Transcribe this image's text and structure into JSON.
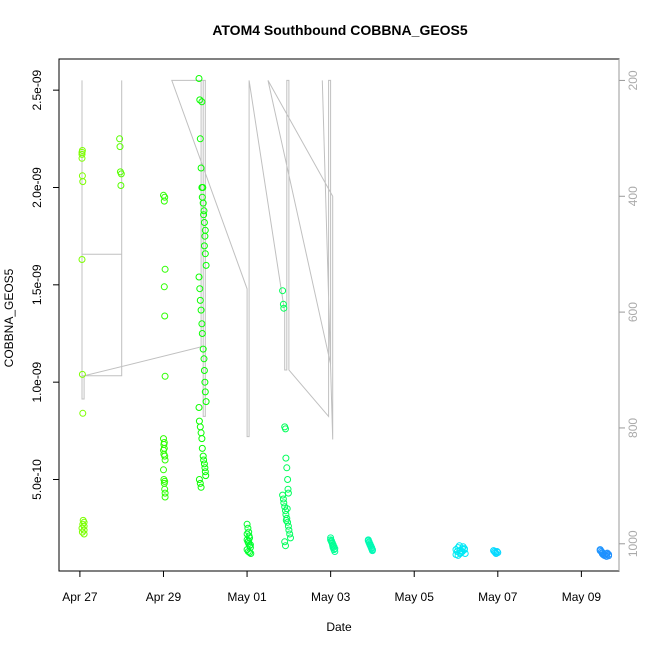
{
  "chart_data": {
    "type": "scatter",
    "title": "ATOM4 Southbound COBBNA_GEOS5",
    "xlabel": "Date",
    "ylabel": "COBBNA_GEOS5",
    "y2label": "",
    "x_ticks": [
      "Apr 27",
      "Apr 29",
      "May 01",
      "May 03",
      "May 05",
      "May 07",
      "May 09"
    ],
    "y_ticks": [
      "5.0e-10",
      "1.0e-09",
      "1.5e-09",
      "2.0e-09",
      "2.5e-09"
    ],
    "y2_ticks": [
      "200",
      "400",
      "600",
      "800",
      "1000"
    ],
    "xlim_days": [
      26.6,
      33.3
    ],
    "x_date_origin": "Apr 0",
    "ylim": [
      3e-11,
      2.66e-09
    ],
    "y2lim": [
      1047,
      163
    ],
    "grid": false,
    "marker": "open-circle",
    "color_by": "date",
    "colors": {
      "early": "#7fff00",
      "mid": "#00ff7f",
      "late": "#1e90ff",
      "pressure_line": "#c0c0c0"
    },
    "pressure_line": {
      "description": "aircraft pressure altitude trace (right axis, hPa)",
      "points": [
        [
          27.05,
          710
        ],
        [
          27.05,
          200
        ],
        [
          27.05,
          500
        ],
        [
          28.0,
          500
        ],
        [
          28.0,
          200
        ],
        [
          28.0,
          710
        ],
        [
          27.05,
          710
        ],
        [
          27.05,
          750
        ],
        [
          27.1,
          750
        ],
        [
          27.1,
          710
        ],
        [
          29.9,
          660
        ],
        [
          29.9,
          200
        ],
        [
          29.95,
          200
        ],
        [
          29.95,
          780
        ],
        [
          30.0,
          780
        ],
        [
          30.0,
          200
        ],
        [
          29.2,
          200
        ],
        [
          31.0,
          560
        ],
        [
          31.0,
          815
        ],
        [
          31.05,
          815
        ],
        [
          31.05,
          200
        ],
        [
          31.9,
          600
        ],
        [
          31.9,
          700
        ],
        [
          31.95,
          700
        ],
        [
          31.95,
          200
        ],
        [
          32.0,
          200
        ],
        [
          32.0,
          700
        ],
        [
          32.95,
          780
        ],
        [
          32.95,
          200
        ],
        [
          33.0,
          200
        ],
        [
          33.0,
          690
        ],
        [
          31.5,
          200
        ],
        [
          33.05,
          400
        ],
        [
          33.05,
          820
        ],
        [
          32.8,
          200
        ]
      ]
    },
    "series": [
      {
        "x": [
          27.05,
          27.05,
          27.05,
          27.06,
          27.06,
          27.07,
          27.05,
          27.06,
          27.07,
          27.08,
          27.05,
          27.06,
          27.07,
          27.1,
          27.1,
          27.1,
          27.1,
          27.95,
          27.96,
          27.97,
          27.98,
          27.99
        ],
        "y": [
          2.18e-09,
          2.17e-09,
          2.15e-09,
          2.19e-09,
          2.06e-09,
          2.03e-09,
          1.63e-09,
          1.04e-09,
          8.4e-10,
          2.9e-10,
          2.5e-10,
          2.3e-10,
          2.7e-10,
          2.2e-10,
          2.6e-10,
          2.8e-10,
          2.4e-10,
          2.25e-09,
          2.21e-09,
          2.08e-09,
          2.01e-09,
          2.07e-09
        ]
      },
      {
        "x": [
          29.0,
          29.02,
          29.03,
          29.04,
          29.02,
          29.03,
          29.04,
          29.0,
          29.01,
          29.02,
          29.03,
          29.04,
          29.0,
          29.01,
          29.02,
          29.03,
          29.04,
          29.0,
          29.01,
          29.02,
          29.03,
          29.04
        ],
        "y": [
          1.96e-09,
          1.93e-09,
          1.95e-09,
          1.58e-09,
          1.49e-09,
          1.34e-09,
          1.03e-09,
          7.1e-10,
          6.8e-10,
          6.6e-10,
          6.2e-10,
          6e-10,
          5.5e-10,
          5e-10,
          4.8e-10,
          4.5e-10,
          4.3e-10,
          6.5e-10,
          6.3e-10,
          6.9e-10,
          4.9e-10,
          4.1e-10
        ]
      },
      {
        "x": [
          29.85,
          29.87,
          29.88,
          29.9,
          29.92,
          29.93,
          29.95,
          29.97,
          29.98,
          29.99,
          30.0,
          30.02,
          29.85,
          29.87,
          29.88,
          29.9,
          29.92,
          29.93,
          29.95,
          29.97,
          29.98,
          29.99,
          30.0,
          30.02,
          29.85,
          29.86,
          29.88,
          29.9,
          29.92,
          29.93,
          29.95,
          29.96,
          29.98,
          29.99,
          30.0,
          30.01,
          29.86,
          29.88,
          29.9,
          29.92,
          29.94,
          29.96,
          29.98,
          30.0
        ],
        "y": [
          2.56e-09,
          2.45e-09,
          2.25e-09,
          2.1e-09,
          2e-09,
          1.95e-09,
          1.92e-09,
          1.88e-09,
          1.82e-09,
          1.75e-09,
          1.66e-09,
          1.6e-09,
          1.54e-09,
          1.48e-09,
          1.42e-09,
          1.37e-09,
          1.3e-09,
          1.25e-09,
          1.17e-09,
          1.12e-09,
          1.06e-09,
          1e-09,
          9.5e-10,
          9e-10,
          8.7e-10,
          8e-10,
          7.7e-10,
          7.4e-10,
          7.1e-10,
          6.6e-10,
          6.2e-10,
          6e-10,
          5.8e-10,
          5.6e-10,
          5.4e-10,
          5.2e-10,
          5e-10,
          4.8e-10,
          4.6e-10,
          2.44e-09,
          2e-09,
          1.86e-09,
          1.7e-09,
          1.78e-09
        ]
      },
      {
        "x": [
          31.0,
          31.02,
          31.04,
          31.05,
          31.06,
          31.0,
          31.02,
          31.04,
          31.06,
          31.08,
          31.0,
          31.03,
          31.06,
          31.09,
          31.0,
          31.04,
          31.08
        ],
        "y": [
          2.7e-10,
          2.5e-10,
          2.3e-10,
          2.1e-10,
          2e-10,
          1.9e-10,
          1.8e-10,
          1.7e-10,
          1.6e-10,
          1.5e-10,
          1.4e-10,
          1.3e-10,
          1.25e-10,
          1.2e-10,
          2.2e-10,
          1.85e-10,
          1.65e-10
        ]
      },
      {
        "x": [
          31.85,
          31.87,
          31.88,
          31.9,
          31.92,
          31.93,
          31.95,
          31.97,
          31.98,
          31.99,
          31.85,
          31.87,
          31.88,
          31.9,
          31.92,
          31.93,
          31.95,
          31.97,
          31.99,
          32.0,
          32.02,
          32.04,
          31.9,
          31.92,
          31.94,
          31.96
        ],
        "y": [
          1.47e-09,
          1.4e-09,
          1.38e-09,
          7.7e-10,
          7.6e-10,
          6.1e-10,
          5.6e-10,
          5e-10,
          4.5e-10,
          4.3e-10,
          4.2e-10,
          4e-10,
          3.8e-10,
          3.6e-10,
          3.4e-10,
          3.2e-10,
          3e-10,
          2.8e-10,
          2.6e-10,
          2.4e-10,
          2.2e-10,
          2e-10,
          1.8e-10,
          1.6e-10,
          2.9e-10,
          3.5e-10
        ]
      },
      {
        "x": [
          33.0,
          33.02,
          33.04,
          33.05,
          33.06,
          33.08,
          33.1,
          33.0,
          33.02,
          33.04,
          33.06,
          33.08,
          33.1,
          33.9,
          33.92,
          33.94,
          33.96,
          33.98,
          34.0,
          33.9,
          33.92,
          33.94,
          33.96,
          33.98,
          34.0
        ],
        "y": [
          1.9e-10,
          1.8e-10,
          1.7e-10,
          1.6e-10,
          1.5e-10,
          1.4e-10,
          1.3e-10,
          2e-10,
          1.85e-10,
          1.75e-10,
          1.65e-10,
          1.55e-10,
          1.45e-10,
          1.9e-10,
          1.8e-10,
          1.7e-10,
          1.6e-10,
          1.5e-10,
          1.4e-10,
          1.85e-10,
          1.75e-10,
          1.65e-10,
          1.55e-10,
          1.45e-10,
          1.35e-10
        ]
      },
      {
        "x": [
          36.0,
          36.03,
          36.05,
          36.08,
          36.1,
          36.12,
          36.15,
          36.17,
          36.2,
          36.22,
          36.0,
          36.05,
          36.1,
          36.15,
          36.2,
          36.9,
          36.92,
          36.94,
          36.96,
          36.98,
          37.0
        ],
        "y": [
          1.4e-10,
          1.3e-10,
          1.5e-10,
          1.6e-10,
          1.35e-10,
          1.25e-10,
          1.45e-10,
          1.55e-10,
          1.4e-10,
          1.2e-10,
          1.15e-10,
          1.1e-10,
          1.2e-10,
          1.3e-10,
          1.45e-10,
          1.35e-10,
          1.3e-10,
          1.25e-10,
          1.2e-10,
          1.3e-10,
          1.25e-10
        ]
      },
      {
        "x": [
          39.45,
          39.48,
          39.5,
          39.52,
          39.55,
          39.58,
          39.6,
          39.62,
          39.65,
          39.45,
          39.5,
          39.55,
          39.6,
          39.65
        ],
        "y": [
          1.4e-10,
          1.3e-10,
          1.2e-10,
          1.15e-10,
          1.1e-10,
          1.12e-10,
          1.18e-10,
          1.22e-10,
          1.15e-10,
          1.35e-10,
          1.25e-10,
          1.1e-10,
          1.05e-10,
          1.08e-10
        ]
      }
    ]
  }
}
